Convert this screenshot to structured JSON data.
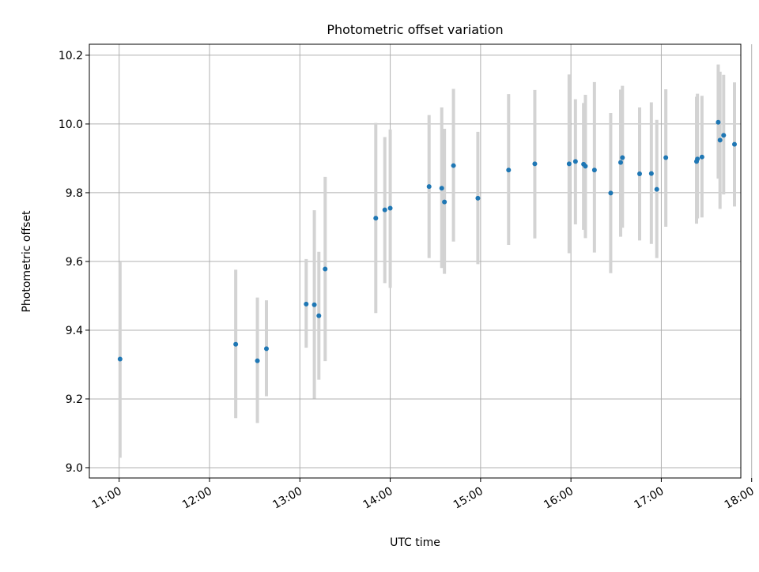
{
  "chart_data": {
    "type": "scatter",
    "title": "Photometric offset variation",
    "xlabel": "UTC time",
    "ylabel": "Photometric offset",
    "x_unit": "UTC hour",
    "xlim": [
      10.67,
      17.88
    ],
    "ylim": [
      8.97,
      10.232
    ],
    "xticks": [
      {
        "value": 11,
        "label": "11:00"
      },
      {
        "value": 12,
        "label": "12:00"
      },
      {
        "value": 13,
        "label": "13:00"
      },
      {
        "value": 14,
        "label": "14:00"
      },
      {
        "value": 15,
        "label": "15:00"
      },
      {
        "value": 16,
        "label": "16:00"
      },
      {
        "value": 17,
        "label": "17:00"
      },
      {
        "value": 18,
        "label": "18:00"
      }
    ],
    "yticks": [
      {
        "value": 9.0,
        "label": "9.0"
      },
      {
        "value": 9.2,
        "label": "9.2"
      },
      {
        "value": 9.4,
        "label": "9.4"
      },
      {
        "value": 9.6,
        "label": "9.6"
      },
      {
        "value": 9.8,
        "label": "9.8"
      },
      {
        "value": 10.0,
        "label": "10.0"
      },
      {
        "value": 10.2,
        "label": "10.2"
      }
    ],
    "grid": true,
    "legend": "none",
    "colors": {
      "point": "#1f77b4",
      "errorbar": "#d3d3d3",
      "grid": "#b0b0b0"
    },
    "points": [
      {
        "x": 11.01,
        "y": 9.316,
        "lo": 9.029,
        "hi": 9.598
      },
      {
        "x": 12.29,
        "y": 9.359,
        "lo": 9.144,
        "hi": 9.576
      },
      {
        "x": 12.53,
        "y": 9.311,
        "lo": 9.13,
        "hi": 9.495
      },
      {
        "x": 12.63,
        "y": 9.346,
        "lo": 9.208,
        "hi": 9.487
      },
      {
        "x": 13.07,
        "y": 9.476,
        "lo": 9.349,
        "hi": 9.607
      },
      {
        "x": 13.16,
        "y": 9.474,
        "lo": 9.201,
        "hi": 9.749
      },
      {
        "x": 13.21,
        "y": 9.442,
        "lo": 9.256,
        "hi": 9.628
      },
      {
        "x": 13.28,
        "y": 9.578,
        "lo": 9.31,
        "hi": 9.846
      },
      {
        "x": 13.84,
        "y": 9.726,
        "lo": 9.45,
        "hi": 10.003
      },
      {
        "x": 13.94,
        "y": 9.75,
        "lo": 9.537,
        "hi": 9.962
      },
      {
        "x": 14.0,
        "y": 9.755,
        "lo": 9.523,
        "hi": 9.984
      },
      {
        "x": 14.43,
        "y": 9.818,
        "lo": 9.61,
        "hi": 10.026
      },
      {
        "x": 14.57,
        "y": 9.813,
        "lo": 9.581,
        "hi": 10.048
      },
      {
        "x": 14.6,
        "y": 9.773,
        "lo": 9.564,
        "hi": 9.986
      },
      {
        "x": 14.7,
        "y": 9.879,
        "lo": 9.658,
        "hi": 10.102
      },
      {
        "x": 14.97,
        "y": 9.784,
        "lo": 9.592,
        "hi": 9.977
      },
      {
        "x": 15.31,
        "y": 9.866,
        "lo": 9.648,
        "hi": 10.087
      },
      {
        "x": 15.6,
        "y": 9.884,
        "lo": 9.667,
        "hi": 10.099
      },
      {
        "x": 15.98,
        "y": 9.884,
        "lo": 9.624,
        "hi": 10.144
      },
      {
        "x": 16.05,
        "y": 9.891,
        "lo": 9.708,
        "hi": 10.072
      },
      {
        "x": 16.14,
        "y": 9.883,
        "lo": 9.692,
        "hi": 10.061
      },
      {
        "x": 16.16,
        "y": 9.877,
        "lo": 9.668,
        "hi": 10.085
      },
      {
        "x": 16.26,
        "y": 9.866,
        "lo": 9.626,
        "hi": 10.122
      },
      {
        "x": 16.44,
        "y": 9.799,
        "lo": 9.566,
        "hi": 10.032
      },
      {
        "x": 16.55,
        "y": 9.888,
        "lo": 9.672,
        "hi": 10.1
      },
      {
        "x": 16.57,
        "y": 9.902,
        "lo": 9.698,
        "hi": 10.111
      },
      {
        "x": 16.76,
        "y": 9.855,
        "lo": 9.661,
        "hi": 10.048
      },
      {
        "x": 16.89,
        "y": 9.856,
        "lo": 9.651,
        "hi": 10.063
      },
      {
        "x": 16.95,
        "y": 9.81,
        "lo": 9.61,
        "hi": 10.012
      },
      {
        "x": 17.05,
        "y": 9.902,
        "lo": 9.701,
        "hi": 10.101
      },
      {
        "x": 17.39,
        "y": 9.891,
        "lo": 9.71,
        "hi": 10.079
      },
      {
        "x": 17.4,
        "y": 9.898,
        "lo": 9.725,
        "hi": 10.088
      },
      {
        "x": 17.45,
        "y": 9.904,
        "lo": 9.728,
        "hi": 10.082
      },
      {
        "x": 17.63,
        "y": 10.005,
        "lo": 9.841,
        "hi": 10.173
      },
      {
        "x": 17.65,
        "y": 9.953,
        "lo": 9.753,
        "hi": 10.152
      },
      {
        "x": 17.69,
        "y": 9.967,
        "lo": 9.795,
        "hi": 10.143
      },
      {
        "x": 17.81,
        "y": 9.941,
        "lo": 9.76,
        "hi": 10.121
      }
    ]
  }
}
